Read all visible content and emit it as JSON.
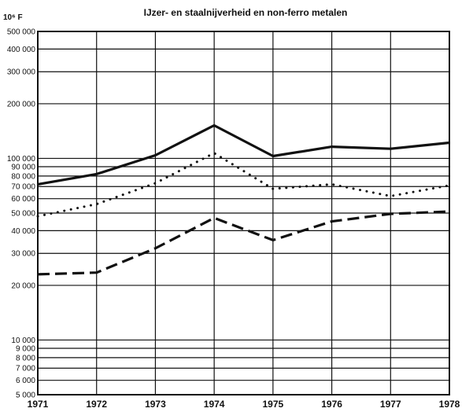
{
  "chart_data": {
    "type": "line",
    "title": "IJzer- en staalnijverheid en non-ferro metalen",
    "ylabel": "10⁶ F",
    "xlabel": "",
    "y_scale": "log",
    "ylim": [
      5000,
      500000
    ],
    "xlim": [
      1971,
      1978
    ],
    "x": [
      1971,
      1972,
      1973,
      1974,
      1975,
      1976,
      1977,
      1978
    ],
    "x_tick_labels": [
      "1971",
      "1972",
      "1973",
      "1974",
      "1975",
      "1976",
      "1977",
      "1978"
    ],
    "y_ticks": [
      5000,
      6000,
      7000,
      8000,
      9000,
      10000,
      20000,
      30000,
      40000,
      50000,
      60000,
      70000,
      80000,
      90000,
      100000,
      200000,
      300000,
      400000,
      500000
    ],
    "y_tick_labels": [
      "5 000",
      "6 000",
      "7 000",
      "8 000",
      "9 000",
      "10 000",
      "20 000",
      "30 000",
      "40 000",
      "50 000",
      "60 000",
      "70 000",
      "80 000",
      "90 000",
      "100 000",
      "200 000",
      "300 000",
      "400 000",
      "500 000"
    ],
    "grid": true,
    "legend": "none",
    "series": [
      {
        "style": "solid",
        "color": "#111111",
        "values": [
          72000,
          82000,
          104000,
          152000,
          103000,
          116000,
          113000,
          122000
        ]
      },
      {
        "style": "dotted",
        "color": "#111111",
        "values": [
          48000,
          56000,
          73000,
          107000,
          68000,
          72000,
          62000,
          71000
        ]
      },
      {
        "style": "dashed",
        "color": "#111111",
        "values": [
          23000,
          23500,
          32000,
          47000,
          35500,
          45000,
          49500,
          51000
        ]
      }
    ]
  }
}
